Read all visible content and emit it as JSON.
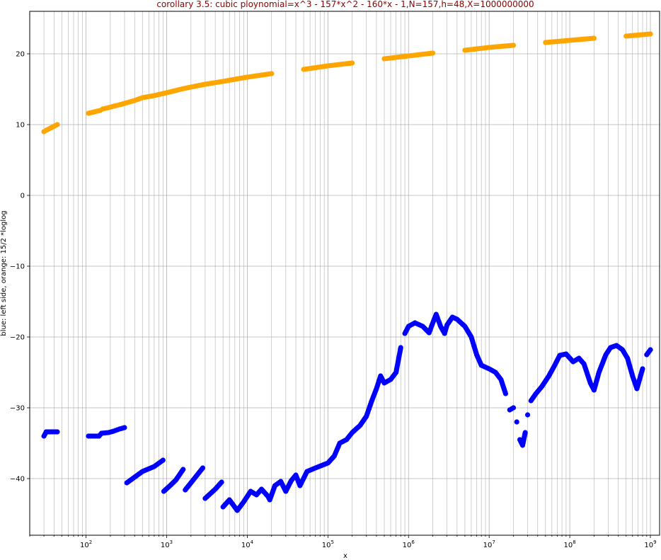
{
  "chart_data": {
    "type": "scatter",
    "title": "corollary 3.5: cubic ploynomial=x^3 - 157*x^2 - 160*x - 1,N=157,h=48,X=1000000000",
    "title_color": "#8b0000",
    "xlabel": "x",
    "ylabel": "blue: left side, orange: 15/2 *loglog",
    "x_scale": "log",
    "xlim": [
      20,
      1300000000
    ],
    "ylim": [
      -48,
      26
    ],
    "grid": true,
    "legend": "none",
    "x_major_ticks": [
      {
        "value": 100,
        "base": "10",
        "exp": "2"
      },
      {
        "value": 1000,
        "base": "10",
        "exp": "3"
      },
      {
        "value": 10000,
        "base": "10",
        "exp": "4"
      },
      {
        "value": 100000,
        "base": "10",
        "exp": "5"
      },
      {
        "value": 1000000,
        "base": "10",
        "exp": "6"
      },
      {
        "value": 10000000,
        "base": "10",
        "exp": "7"
      },
      {
        "value": 100000000,
        "base": "10",
        "exp": "8"
      },
      {
        "value": 1000000000,
        "base": "10",
        "exp": "9"
      }
    ],
    "y_ticks": [
      {
        "value": 20,
        "label": "20"
      },
      {
        "value": 10,
        "label": "10"
      },
      {
        "value": 0,
        "label": "0"
      },
      {
        "value": -10,
        "label": "−10"
      },
      {
        "value": -20,
        "label": "−20"
      },
      {
        "value": -30,
        "label": "−30"
      },
      {
        "value": -40,
        "label": "−40"
      }
    ],
    "series": [
      {
        "color": "#ffa500",
        "points": [
          [
            30,
            9.0
          ],
          [
            32,
            9.2
          ],
          [
            44,
            10.0
          ],
          [
            107,
            11.6
          ],
          [
            150,
            12.0
          ],
          [
            160,
            12.2
          ],
          [
            190,
            12.4
          ],
          [
            220,
            12.6
          ],
          [
            260,
            12.8
          ],
          [
            300,
            13.0
          ],
          [
            400,
            13.4
          ],
          [
            500,
            13.8
          ],
          [
            700,
            14.1
          ],
          [
            1000,
            14.5
          ],
          [
            1500,
            15.0
          ],
          [
            2000,
            15.3
          ],
          [
            3000,
            15.7
          ],
          [
            5000,
            16.1
          ],
          [
            7000,
            16.4
          ],
          [
            10000,
            16.7
          ],
          [
            20000,
            17.2
          ],
          [
            50000,
            17.8
          ],
          [
            100000,
            18.3
          ],
          [
            200000,
            18.7
          ],
          [
            500000,
            19.3
          ],
          [
            1000000,
            19.7
          ],
          [
            2000000,
            20.1
          ],
          [
            5000000,
            20.5
          ],
          [
            10000000,
            20.9
          ],
          [
            20000000,
            21.2
          ],
          [
            50000000,
            21.6
          ],
          [
            100000000,
            21.9
          ],
          [
            200000000,
            22.2
          ],
          [
            500000000,
            22.5
          ],
          [
            1000000000,
            22.8
          ]
        ]
      },
      {
        "color": "#0000ff",
        "points": [
          [
            30,
            -34.0
          ],
          [
            32,
            -33.4
          ],
          [
            44,
            -33.4
          ],
          [
            107,
            -34.0
          ],
          [
            145,
            -34.0
          ],
          [
            155,
            -33.6
          ],
          [
            190,
            -33.5
          ],
          [
            220,
            -33.3
          ],
          [
            260,
            -33.0
          ],
          [
            300,
            -32.8
          ],
          [
            320,
            -40.6
          ],
          [
            400,
            -39.8
          ],
          [
            500,
            -39.0
          ],
          [
            700,
            -38.3
          ],
          [
            900,
            -37.4
          ],
          [
            920,
            -41.8
          ],
          [
            1100,
            -41.0
          ],
          [
            1300,
            -40.2
          ],
          [
            1600,
            -38.7
          ],
          [
            1700,
            -41.6
          ],
          [
            2200,
            -40.0
          ],
          [
            2800,
            -38.5
          ],
          [
            3000,
            -42.8
          ],
          [
            4000,
            -41.5
          ],
          [
            4800,
            -40.5
          ],
          [
            5000,
            -44.0
          ],
          [
            6000,
            -43.0
          ],
          [
            7500,
            -44.5
          ],
          [
            9000,
            -43.3
          ],
          [
            11000,
            -41.8
          ],
          [
            13000,
            -42.3
          ],
          [
            15000,
            -41.5
          ],
          [
            18000,
            -42.5
          ],
          [
            19000,
            -43.0
          ],
          [
            22000,
            -41.0
          ],
          [
            26000,
            -40.4
          ],
          [
            30000,
            -41.8
          ],
          [
            35000,
            -40.3
          ],
          [
            40000,
            -39.5
          ],
          [
            45000,
            -41.0
          ],
          [
            55000,
            -39.0
          ],
          [
            70000,
            -38.5
          ],
          [
            100000,
            -37.8
          ],
          [
            120000,
            -36.8
          ],
          [
            140000,
            -35.0
          ],
          [
            170000,
            -34.5
          ],
          [
            200000,
            -33.5
          ],
          [
            250000,
            -32.5
          ],
          [
            300000,
            -31.2
          ],
          [
            350000,
            -29.0
          ],
          [
            400000,
            -27.3
          ],
          [
            450000,
            -25.5
          ],
          [
            500000,
            -26.5
          ],
          [
            600000,
            -26.0
          ],
          [
            700000,
            -25.0
          ],
          [
            800000,
            -21.5
          ],
          [
            900000,
            -19.5
          ],
          [
            1000000,
            -18.5
          ],
          [
            1200000,
            -18.0
          ],
          [
            1500000,
            -18.5
          ],
          [
            1800000,
            -19.4
          ],
          [
            2000000,
            -18.0
          ],
          [
            2200000,
            -16.8
          ],
          [
            2500000,
            -18.5
          ],
          [
            2800000,
            -19.5
          ],
          [
            3000000,
            -18.3
          ],
          [
            3500000,
            -17.2
          ],
          [
            4000000,
            -17.5
          ],
          [
            5000000,
            -18.5
          ],
          [
            6000000,
            -20.0
          ],
          [
            7000000,
            -22.5
          ],
          [
            8000000,
            -24.0
          ],
          [
            10000000,
            -24.5
          ],
          [
            12000000,
            -25.0
          ],
          [
            14000000,
            -26.0
          ],
          [
            16000000,
            -28.0
          ],
          [
            18000000,
            -30.3
          ],
          [
            20000000,
            -30.0
          ],
          [
            22000000,
            -32.0
          ],
          [
            24000000,
            -34.5
          ],
          [
            26000000,
            -35.3
          ],
          [
            28000000,
            -33.5
          ],
          [
            30000000,
            -31.0
          ],
          [
            33000000,
            -29.0
          ],
          [
            38000000,
            -28.0
          ],
          [
            45000000,
            -27.0
          ],
          [
            55000000,
            -25.5
          ],
          [
            65000000,
            -24.0
          ],
          [
            75000000,
            -22.6
          ],
          [
            90000000,
            -22.4
          ],
          [
            110000000,
            -23.5
          ],
          [
            130000000,
            -23.0
          ],
          [
            150000000,
            -23.8
          ],
          [
            180000000,
            -26.5
          ],
          [
            200000000,
            -27.5
          ],
          [
            230000000,
            -25.0
          ],
          [
            280000000,
            -22.5
          ],
          [
            320000000,
            -21.5
          ],
          [
            380000000,
            -21.2
          ],
          [
            450000000,
            -21.8
          ],
          [
            520000000,
            -23.0
          ],
          [
            600000000,
            -25.5
          ],
          [
            680000000,
            -27.3
          ],
          [
            800000000,
            -24.5
          ],
          [
            900000000,
            -22.5
          ],
          [
            1000000000,
            -21.8
          ]
        ]
      }
    ]
  }
}
